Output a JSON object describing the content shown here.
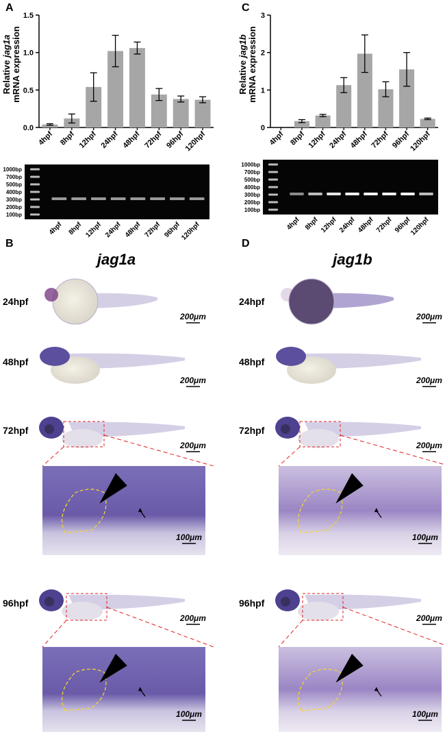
{
  "chart_data": [
    {
      "type": "bar",
      "panel": "A",
      "ylabel_prefix": "Relative",
      "gene": "jag1a",
      "ylabel_line2": "mRNA expression",
      "categories": [
        "4hpf",
        "8hpf",
        "12hpf",
        "24hpf",
        "48hpf",
        "72hpf",
        "96hpf",
        "120hpf"
      ],
      "values": [
        0.04,
        0.12,
        0.54,
        1.02,
        1.06,
        0.44,
        0.38,
        0.37
      ],
      "errors": [
        0.01,
        0.06,
        0.19,
        0.21,
        0.08,
        0.08,
        0.04,
        0.04
      ],
      "color": "#a6a6a6",
      "ylim": [
        0,
        1.5
      ],
      "yticks": [
        {
          "value": 0,
          "label": "0.0"
        },
        {
          "value": 0.5,
          "label": "0.5"
        },
        {
          "value": 1,
          "label": "1.0"
        },
        {
          "value": 1.5,
          "label": "1.5"
        }
      ]
    },
    {
      "type": "bar",
      "panel": "C",
      "ylabel_prefix": "Relative",
      "gene": "jag1b",
      "ylabel_line2": "mRNA expression",
      "categories": [
        "4hpf",
        "8hpf",
        "12hpf",
        "24hpf",
        "48hpf",
        "72hpf",
        "96hpf",
        "120hpf"
      ],
      "values": [
        0,
        0.17,
        0.32,
        1.13,
        1.97,
        1.02,
        1.55,
        0.23
      ],
      "errors": [
        0,
        0.04,
        0.03,
        0.2,
        0.5,
        0.2,
        0.45,
        0.02
      ],
      "color": "#a6a6a6",
      "ylim": [
        0,
        3
      ],
      "yticks": [
        0,
        1,
        2,
        3
      ]
    }
  ],
  "gels": [
    {
      "ladder": [
        "1000bp",
        "700bp",
        "500bp",
        "400bp",
        "300bp",
        "200bp",
        "100bp"
      ],
      "lanes": [
        "4hpf",
        "8hpf",
        "12hpf",
        "24hpf",
        "48hpf",
        "72hpf",
        "96hpf",
        "120hpf"
      ]
    },
    {
      "ladder": [
        "1000bp",
        "700bp",
        "500bp",
        "400bp",
        "300bp",
        "200bp",
        "100bp"
      ],
      "lanes": [
        "4hpf",
        "8hpf",
        "12hpf",
        "24hpf",
        "48hpf",
        "72hpf",
        "96hpf",
        "120hpf"
      ]
    }
  ],
  "ish": [
    {
      "panel": "B",
      "gene": "jag1a",
      "stages": [
        "24hpf",
        "48hpf",
        "72hpf",
        "96hpf"
      ],
      "scale_bars": [
        "200μm",
        "200μm",
        "200μm",
        "100μm",
        "200μm",
        "100μm"
      ]
    },
    {
      "panel": "D",
      "gene": "jag1b",
      "stages": [
        "24hpf",
        "48hpf",
        "72hpf",
        "96hpf"
      ],
      "scale_bars": [
        "200μm",
        "200μm",
        "200μm",
        "100μm",
        "200μm",
        "100μm"
      ]
    }
  ]
}
